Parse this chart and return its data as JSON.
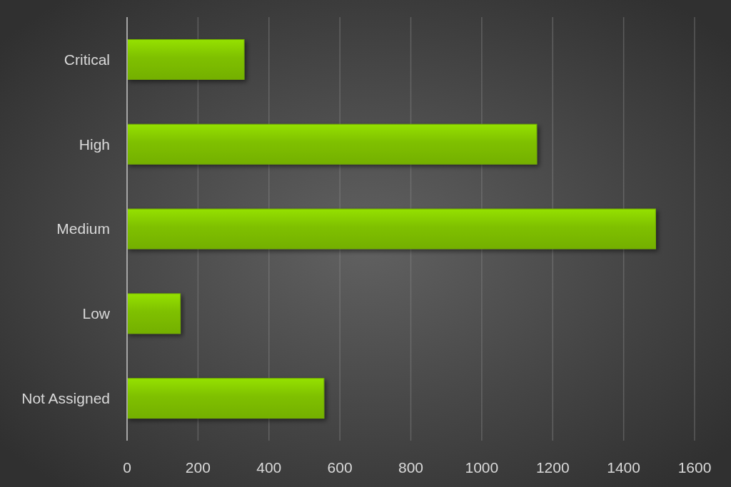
{
  "chart_data": {
    "type": "bar",
    "orientation": "horizontal",
    "categories": [
      "Critical",
      "High",
      "Medium",
      "Low",
      "Not Assigned"
    ],
    "values": [
      330,
      1155,
      1490,
      150,
      555
    ],
    "color": "#7fc000",
    "xlim": [
      0,
      1600
    ],
    "xticks": [
      0,
      200,
      400,
      600,
      800,
      1000,
      1200,
      1400,
      1600
    ],
    "grid": "x"
  }
}
